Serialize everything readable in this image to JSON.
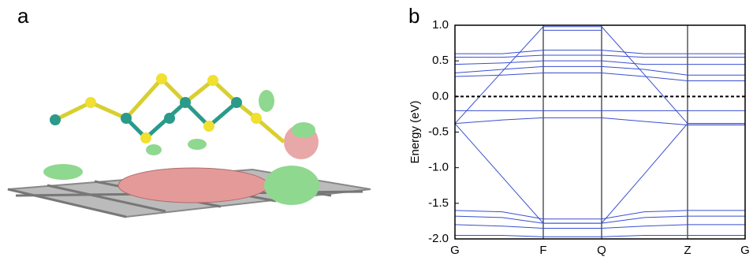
{
  "panel_labels": [
    "a",
    "b"
  ],
  "chart_data": {
    "type": "line",
    "ylabel": "Energy (eV)",
    "color": "#3a4fd0",
    "x": [
      0,
      60,
      112,
      186,
      240,
      295,
      368
    ],
    "xlim": [
      0,
      368
    ],
    "xticks": [
      {
        "value": 0,
        "label": "G"
      },
      {
        "value": 112,
        "label": "F"
      },
      {
        "value": 186,
        "label": "Q"
      },
      {
        "value": 295,
        "label": "Z"
      },
      {
        "value": 368,
        "label": "G"
      }
    ],
    "ylim": [
      -2,
      1
    ],
    "yticks": [
      {
        "value": 1,
        "label": "1.0"
      },
      0.5,
      {
        "value": 0,
        "label": "0.0"
      },
      -0.5,
      {
        "value": -1,
        "label": "-1.0"
      },
      -1.5,
      {
        "value": -2,
        "label": "-2.0"
      }
    ],
    "fermi_level": 0,
    "series": [
      {
        "values": [
          -0.38,
          0.35,
          0.98,
          0.98,
          0.31,
          -0.38,
          -0.38
        ]
      },
      {
        "values": [
          null,
          null,
          0.93,
          0.93,
          null,
          null,
          null
        ]
      },
      {
        "values": [
          0.6,
          0.6,
          0.65,
          0.65,
          0.6,
          0.6,
          0.6
        ]
      },
      {
        "values": [
          0.55,
          0.55,
          0.58,
          0.58,
          0.55,
          0.55,
          0.55
        ]
      },
      {
        "values": [
          0.45,
          0.47,
          0.5,
          0.5,
          0.45,
          0.45,
          0.45
        ]
      },
      {
        "values": [
          0.33,
          0.38,
          0.42,
          0.42,
          0.38,
          0.3,
          0.3
        ]
      },
      {
        "values": [
          0.28,
          0.3,
          0.33,
          0.33,
          0.28,
          0.22,
          0.22
        ]
      },
      {
        "values": [
          -0.2,
          -0.2,
          -0.2,
          -0.2,
          -0.2,
          -0.2,
          -0.2
        ]
      },
      {
        "values": [
          -0.38,
          -0.33,
          -0.3,
          -0.3,
          -0.35,
          -0.4,
          -0.4
        ]
      },
      {
        "values": [
          -0.38,
          -1.13,
          -1.78,
          -1.78,
          -1.09,
          -0.38,
          -0.38
        ]
      },
      {
        "values": [
          -1.6,
          -1.62,
          -1.72,
          -1.72,
          -1.62,
          -1.6,
          -1.6
        ]
      },
      {
        "values": [
          -1.68,
          -1.7,
          -1.78,
          -1.78,
          -1.7,
          -1.68,
          -1.68
        ]
      },
      {
        "values": [
          -1.8,
          -1.82,
          -1.85,
          -1.85,
          -1.82,
          -1.8,
          -1.8
        ]
      },
      {
        "values": [
          -1.95,
          -1.95,
          -1.97,
          -1.97,
          -1.95,
          -1.95,
          -1.95
        ]
      }
    ]
  }
}
